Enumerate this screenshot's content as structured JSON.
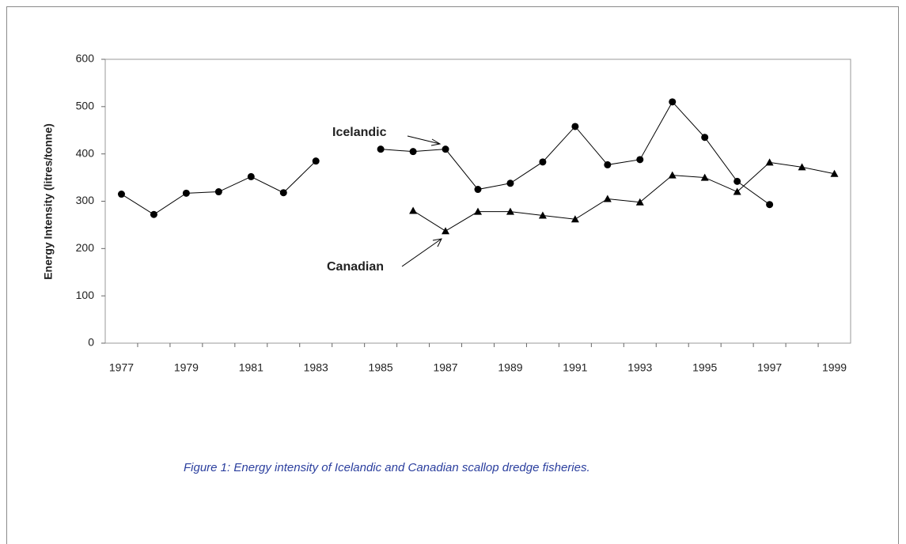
{
  "chart_data": {
    "type": "line",
    "y_axis_label": "Energy Intensity (litres/tonne)",
    "caption": "Figure 1: Energy intensity of Icelandic and Canadian scallop dredge fisheries.",
    "categories": [
      "1977",
      null,
      "1979",
      null,
      "1981",
      null,
      "1983",
      null,
      "1985",
      null,
      "1987",
      null,
      "1989",
      null,
      "1991",
      null,
      "1993",
      null,
      "1995",
      null,
      "1997",
      null,
      "1999"
    ],
    "series": [
      {
        "name": "Icelandic",
        "color": "#000000",
        "marker": "circle",
        "values": [
          315,
          272,
          317,
          320,
          352,
          318,
          385,
          null,
          410,
          405,
          410,
          325,
          338,
          383,
          458,
          377,
          388,
          510,
          435,
          342,
          293,
          null,
          null
        ]
      },
      {
        "name": "Canadian",
        "color": "#000000",
        "marker": "triangle",
        "values": [
          null,
          null,
          null,
          null,
          null,
          null,
          null,
          null,
          null,
          280,
          237,
          278,
          278,
          270,
          262,
          305,
          298,
          355,
          350,
          320,
          382,
          372,
          358
        ]
      }
    ],
    "ylim": [
      0,
      600
    ],
    "yticks": [
      0,
      100,
      200,
      300,
      400,
      500,
      600
    ],
    "grid": false
  }
}
